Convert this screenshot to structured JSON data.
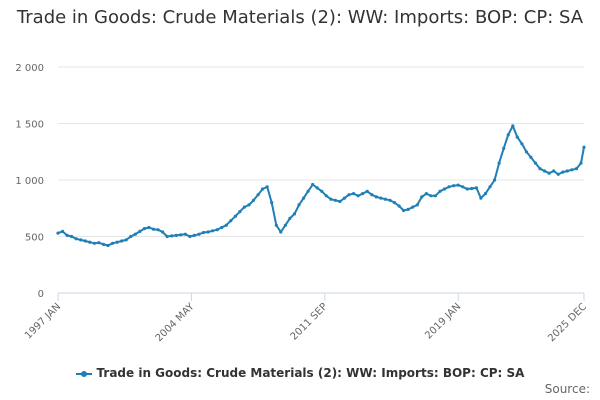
{
  "chart_data": {
    "type": "line",
    "title": "Trade in Goods: Crude Materials (2): WW: Imports: BOP: CP: SA",
    "xlabel": "",
    "ylabel": "",
    "ylim": [
      0,
      2000
    ],
    "y_ticks": [
      "0",
      "500",
      "1 000",
      "1 500",
      "2 000"
    ],
    "x_tick_labels": [
      "1997 JAN",
      "2004 MAY",
      "2011 SEP",
      "2019 JAN",
      "2025 DEC"
    ],
    "grid": true,
    "legend_position": "bottom",
    "series": [
      {
        "name": "Trade in Goods: Crude Materials (2): WW: Imports: BOP: CP: SA",
        "color": "#1f7fb6",
        "points": [
          [
            "1997-01",
            530
          ],
          [
            "1997-04",
            545
          ],
          [
            "1997-07",
            510
          ],
          [
            "1997-10",
            500
          ],
          [
            "1998-01",
            480
          ],
          [
            "1998-04",
            470
          ],
          [
            "1998-07",
            460
          ],
          [
            "1998-10",
            450
          ],
          [
            "1999-01",
            440
          ],
          [
            "1999-04",
            445
          ],
          [
            "1999-07",
            430
          ],
          [
            "1999-10",
            420
          ],
          [
            "2000-01",
            440
          ],
          [
            "2000-04",
            450
          ],
          [
            "2000-07",
            460
          ],
          [
            "2000-10",
            470
          ],
          [
            "2001-01",
            500
          ],
          [
            "2001-04",
            520
          ],
          [
            "2001-07",
            545
          ],
          [
            "2001-10",
            570
          ],
          [
            "2002-01",
            580
          ],
          [
            "2002-04",
            565
          ],
          [
            "2002-07",
            560
          ],
          [
            "2002-10",
            540
          ],
          [
            "2003-01",
            500
          ],
          [
            "2003-04",
            505
          ],
          [
            "2003-07",
            510
          ],
          [
            "2003-10",
            515
          ],
          [
            "2004-01",
            520
          ],
          [
            "2004-04",
            500
          ],
          [
            "2004-07",
            510
          ],
          [
            "2004-10",
            520
          ],
          [
            "2005-01",
            535
          ],
          [
            "2005-04",
            540
          ],
          [
            "2005-07",
            550
          ],
          [
            "2005-10",
            560
          ],
          [
            "2006-01",
            580
          ],
          [
            "2006-04",
            600
          ],
          [
            "2006-07",
            640
          ],
          [
            "2006-10",
            680
          ],
          [
            "2007-01",
            720
          ],
          [
            "2007-04",
            760
          ],
          [
            "2007-07",
            780
          ],
          [
            "2007-10",
            820
          ],
          [
            "2008-01",
            870
          ],
          [
            "2008-04",
            920
          ],
          [
            "2008-07",
            940
          ],
          [
            "2008-10",
            800
          ],
          [
            "2009-01",
            600
          ],
          [
            "2009-04",
            540
          ],
          [
            "2009-07",
            600
          ],
          [
            "2009-10",
            660
          ],
          [
            "2010-01",
            700
          ],
          [
            "2010-04",
            780
          ],
          [
            "2010-07",
            840
          ],
          [
            "2010-10",
            900
          ],
          [
            "2011-01",
            960
          ],
          [
            "2011-04",
            930
          ],
          [
            "2011-07",
            900
          ],
          [
            "2011-10",
            860
          ],
          [
            "2012-01",
            830
          ],
          [
            "2012-04",
            820
          ],
          [
            "2012-07",
            810
          ],
          [
            "2012-10",
            840
          ],
          [
            "2013-01",
            870
          ],
          [
            "2013-04",
            880
          ],
          [
            "2013-07",
            860
          ],
          [
            "2013-10",
            880
          ],
          [
            "2014-01",
            900
          ],
          [
            "2014-04",
            870
          ],
          [
            "2014-07",
            850
          ],
          [
            "2014-10",
            840
          ],
          [
            "2015-01",
            830
          ],
          [
            "2015-04",
            820
          ],
          [
            "2015-07",
            800
          ],
          [
            "2015-10",
            770
          ],
          [
            "2016-01",
            730
          ],
          [
            "2016-04",
            740
          ],
          [
            "2016-07",
            760
          ],
          [
            "2016-10",
            780
          ],
          [
            "2017-01",
            850
          ],
          [
            "2017-04",
            880
          ],
          [
            "2017-07",
            860
          ],
          [
            "2017-10",
            860
          ],
          [
            "2018-01",
            900
          ],
          [
            "2018-04",
            920
          ],
          [
            "2018-07",
            940
          ],
          [
            "2018-10",
            950
          ],
          [
            "2019-01",
            955
          ],
          [
            "2019-04",
            940
          ],
          [
            "2019-07",
            920
          ],
          [
            "2019-10",
            925
          ],
          [
            "2020-01",
            930
          ],
          [
            "2020-04",
            840
          ],
          [
            "2020-07",
            880
          ],
          [
            "2020-10",
            940
          ],
          [
            "2021-01",
            1000
          ],
          [
            "2021-04",
            1150
          ],
          [
            "2021-07",
            1280
          ],
          [
            "2021-10",
            1400
          ],
          [
            "2022-01",
            1480
          ],
          [
            "2022-04",
            1380
          ],
          [
            "2022-07",
            1320
          ],
          [
            "2022-10",
            1250
          ],
          [
            "2023-01",
            1200
          ],
          [
            "2023-04",
            1150
          ],
          [
            "2023-07",
            1100
          ],
          [
            "2023-10",
            1080
          ],
          [
            "2024-01",
            1060
          ],
          [
            "2024-04",
            1080
          ],
          [
            "2024-07",
            1050
          ],
          [
            "2024-10",
            1070
          ],
          [
            "2025-01",
            1080
          ],
          [
            "2025-04",
            1090
          ],
          [
            "2025-07",
            1100
          ],
          [
            "2025-10",
            1150
          ],
          [
            "2025-12",
            1290
          ]
        ]
      }
    ]
  },
  "legend": {
    "label": "Trade in Goods: Crude Materials (2): WW: Imports: BOP: CP: SA"
  },
  "credits": {
    "label": "Source:"
  }
}
